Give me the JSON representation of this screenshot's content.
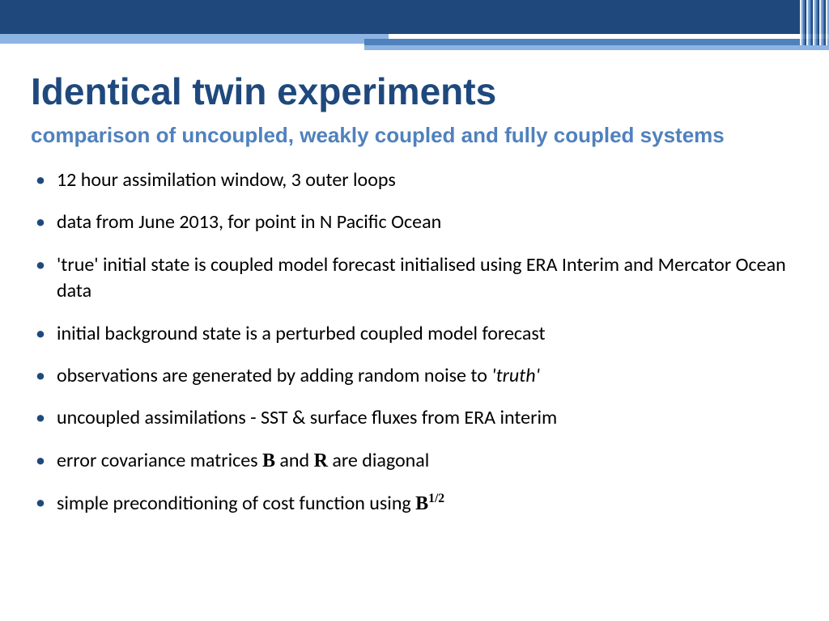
{
  "colors": {
    "band_dark": "#1f497d",
    "band_mid": "#4f81bd",
    "band_light": "#8eb4e3",
    "background": "#ffffff",
    "title_color": "#1f497d",
    "subtitle_color": "#4f81bd",
    "body_text": "#000000",
    "bullet_color": "#1f497d"
  },
  "typography": {
    "title_fontsize": 46,
    "subtitle_fontsize": 26,
    "body_fontsize": 24,
    "title_family": "Trebuchet MS",
    "body_family": "Calibri"
  },
  "title": "Identical twin experiments",
  "subtitle": "comparison of uncoupled, weakly coupled and fully coupled systems",
  "bullets": [
    {
      "text": "12 hour assimilation window, 3 outer loops"
    },
    {
      "text": "data from June 2013, for point in N Pacific Ocean"
    },
    {
      "text": "'true' initial state is coupled model forecast initialised using ERA Interim and Mercator Ocean data"
    },
    {
      "text": "initial background state is a perturbed coupled model forecast"
    },
    {
      "pre": "observations are generated by adding random noise to ",
      "ital": "'truth'"
    },
    {
      "text": "uncoupled assimilations - SST & surface fluxes from ERA interim"
    },
    {
      "pre": "error covariance matrices ",
      "B1": "B",
      "mid": " and ",
      "B2": "R",
      "post": " are diagonal"
    },
    {
      "pre": "simple preconditioning of cost function using ",
      "B1": "B",
      "sup": "1/2"
    }
  ]
}
